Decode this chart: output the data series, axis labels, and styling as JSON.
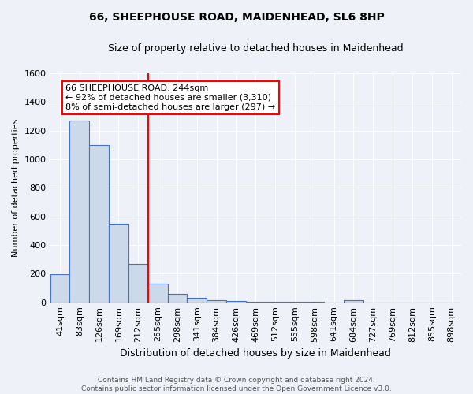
{
  "title": "66, SHEEPHOUSE ROAD, MAIDENHEAD, SL6 8HP",
  "subtitle": "Size of property relative to detached houses in Maidenhead",
  "xlabel": "Distribution of detached houses by size in Maidenhead",
  "ylabel": "Number of detached properties",
  "footer_line1": "Contains HM Land Registry data © Crown copyright and database right 2024.",
  "footer_line2": "Contains public sector information licensed under the Open Government Licence v3.0.",
  "bin_labels": [
    "41sqm",
    "83sqm",
    "126sqm",
    "169sqm",
    "212sqm",
    "255sqm",
    "298sqm",
    "341sqm",
    "384sqm",
    "426sqm",
    "469sqm",
    "512sqm",
    "555sqm",
    "598sqm",
    "641sqm",
    "684sqm",
    "727sqm",
    "769sqm",
    "812sqm",
    "855sqm",
    "898sqm"
  ],
  "bar_heights": [
    197,
    1270,
    1100,
    550,
    270,
    130,
    60,
    32,
    17,
    8,
    5,
    3,
    2,
    1,
    0,
    14,
    0,
    0,
    0,
    0,
    0
  ],
  "bar_color": "#ccd9ea",
  "bar_edge_color": "#4472c4",
  "ylim": [
    0,
    1600
  ],
  "yticks": [
    0,
    200,
    400,
    600,
    800,
    1000,
    1200,
    1400,
    1600
  ],
  "property_line_x": 4.53,
  "annotation_text": "66 SHEEPHOUSE ROAD: 244sqm\n← 92% of detached houses are smaller (3,310)\n8% of semi-detached houses are larger (297) →",
  "annotation_box_color": "white",
  "annotation_box_edge_color": "red",
  "vline_color": "red",
  "background_color": "#eef2f8",
  "grid_color": "white",
  "title_fontsize": 10,
  "subtitle_fontsize": 9,
  "ylabel_fontsize": 8,
  "xlabel_fontsize": 9,
  "tick_fontsize": 8,
  "annotation_fontsize": 8,
  "footer_fontsize": 6.5
}
